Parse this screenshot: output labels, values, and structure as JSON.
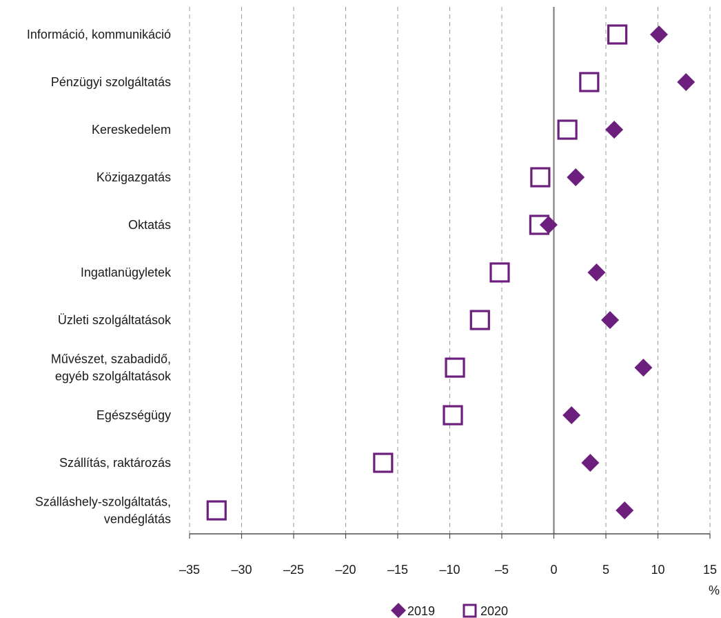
{
  "chart_data": {
    "type": "scatter",
    "orientation": "horizontal",
    "categories": [
      [
        "Információ, kommunikáció"
      ],
      [
        "Pénzügyi szolgáltatás"
      ],
      [
        "Kereskedelem"
      ],
      [
        "Közigazgatás"
      ],
      [
        "Oktatás"
      ],
      [
        "Ingatlanügyletek"
      ],
      [
        "Üzleti szolgáltatások"
      ],
      [
        "Művészet, szabadidő,",
        "egyéb szolgáltatások"
      ],
      [
        "Egészségügy"
      ],
      [
        "Szállítás, raktározás"
      ],
      [
        "Szálláshely-szolgáltatás,",
        "vendéglátás"
      ]
    ],
    "series": [
      {
        "name": "2019",
        "marker": "diamond-filled",
        "color": "#6d1f7e",
        "values": [
          10.1,
          12.7,
          5.8,
          2.1,
          -0.5,
          4.1,
          5.4,
          8.6,
          1.7,
          3.5,
          6.8
        ]
      },
      {
        "name": "2020",
        "marker": "square-open",
        "color": "#6d1f7e",
        "values": [
          6.1,
          3.4,
          1.3,
          -1.3,
          -1.4,
          -5.2,
          -7.1,
          -9.5,
          -9.7,
          -16.4,
          -32.4
        ]
      }
    ],
    "xlim": [
      -35,
      15
    ],
    "xticks": [
      -35,
      -30,
      -25,
      -20,
      -15,
      -10,
      -5,
      0,
      5,
      10,
      15
    ],
    "xtick_labels": [
      "–35",
      "–30",
      "–25",
      "–20",
      "–15",
      "–10",
      "–5",
      "0",
      "5",
      "10",
      "15"
    ],
    "xunit": "%",
    "grid": "vertical dashed",
    "legend_position": "bottom-center"
  }
}
